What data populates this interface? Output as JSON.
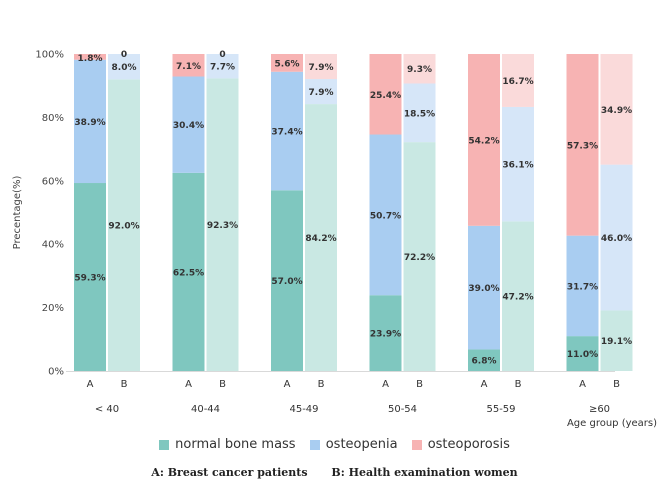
{
  "chart_data": {
    "type": "bar",
    "stacked": true,
    "ylabel": "Precentage(%)",
    "xlabel": "Age group (years)",
    "ylim": [
      0,
      100
    ],
    "yticks": [
      "0%",
      "20%",
      "40%",
      "60%",
      "80%",
      "100%"
    ],
    "series": [
      {
        "name": "normal bone mass",
        "color": "#7fc7bf"
      },
      {
        "name": "osteopenia",
        "color": "#a9cdf1"
      },
      {
        "name": "osteoporosis",
        "color": "#f7b3b3"
      }
    ],
    "groups": [
      {
        "label": "< 40",
        "bars": [
          {
            "label": "A",
            "values": [
              59.3,
              38.9,
              1.8
            ],
            "labels": [
              "59.3%",
              "38.9%",
              "1.8%"
            ]
          },
          {
            "label": "B",
            "values": [
              92.0,
              8.0,
              0
            ],
            "labels": [
              "92.0%",
              "8.0%",
              "0"
            ]
          }
        ]
      },
      {
        "label": "40-44",
        "bars": [
          {
            "label": "A",
            "values": [
              62.5,
              30.4,
              7.1
            ],
            "labels": [
              "62.5%",
              "30.4%",
              "7.1%"
            ]
          },
          {
            "label": "B",
            "values": [
              92.3,
              7.7,
              0
            ],
            "labels": [
              "92.3%",
              "7.7%",
              "0"
            ]
          }
        ]
      },
      {
        "label": "45-49",
        "bars": [
          {
            "label": "A",
            "values": [
              57.0,
              37.4,
              5.6
            ],
            "labels": [
              "57.0%",
              "37.4%",
              "5.6%"
            ]
          },
          {
            "label": "B",
            "values": [
              84.2,
              7.9,
              7.9
            ],
            "labels": [
              "84.2%",
              "7.9%",
              "7.9%"
            ]
          }
        ]
      },
      {
        "label": "50-54",
        "bars": [
          {
            "label": "A",
            "values": [
              23.9,
              50.7,
              25.4
            ],
            "labels": [
              "23.9%",
              "50.7%",
              "25.4%"
            ]
          },
          {
            "label": "B",
            "values": [
              72.2,
              18.5,
              9.3
            ],
            "labels": [
              "72.2%",
              "18.5%",
              "9.3%"
            ]
          }
        ]
      },
      {
        "label": "55-59",
        "bars": [
          {
            "label": "A",
            "values": [
              6.8,
              39.0,
              54.2
            ],
            "labels": [
              "6.8%",
              "39.0%",
              "54.2%"
            ]
          },
          {
            "label": "B",
            "values": [
              47.2,
              36.1,
              16.7
            ],
            "labels": [
              "47.2%",
              "36.1%",
              "16.7%"
            ]
          }
        ]
      },
      {
        "label": "≥60",
        "bars": [
          {
            "label": "A",
            "values": [
              11.0,
              31.7,
              57.3
            ],
            "labels": [
              "11.0%",
              "31.7%",
              "57.3%"
            ]
          },
          {
            "label": "B",
            "values": [
              19.1,
              46.0,
              34.9
            ],
            "labels": [
              "19.1%",
              "46.0%",
              "34.9%"
            ]
          }
        ]
      }
    ]
  },
  "legend": {
    "items": [
      {
        "label": "normal bone mass",
        "color": "#7fc7bf"
      },
      {
        "label": "osteopenia",
        "color": "#a9cdf1"
      },
      {
        "label": "osteoporosis",
        "color": "#f7b3b3"
      }
    ]
  },
  "caption": {
    "a_text": "A:  Breast cancer patients",
    "b_text": "B: Health examination women"
  }
}
